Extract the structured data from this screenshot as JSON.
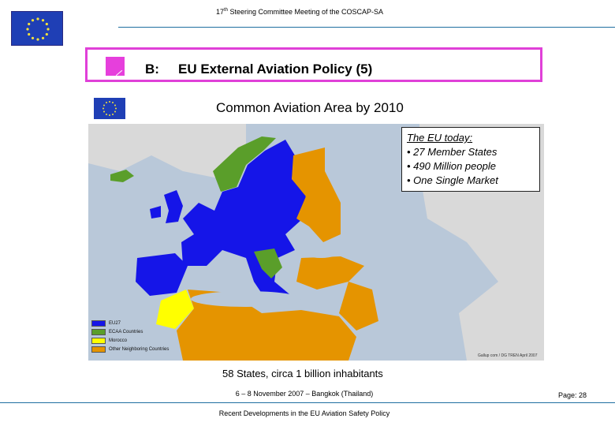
{
  "header": {
    "meeting_number": "17",
    "meeting_suffix": "th",
    "meeting_text": " Steering Committee Meeting of the COSCAP-SA"
  },
  "title": {
    "label": "B:",
    "text": "EU External Aviation Policy (5)"
  },
  "map": {
    "title": "Common Aviation Area by 2010",
    "info_box": {
      "heading": "The EU today:",
      "items": [
        "• 27 Member States",
        "• 490 Million people",
        "• One Single Market"
      ]
    },
    "legend": [
      {
        "label": "EU27",
        "color": "#1515e8"
      },
      {
        "label": "ECAA Countries",
        "color": "#5a9e2a"
      },
      {
        "label": "Morocco",
        "color": "#ffff00"
      },
      {
        "label": "Other Neighboring Countries",
        "color": "#e59400"
      }
    ],
    "copyright": "Gallup com / DG TREN April 2007"
  },
  "caption": "58 States, circa 1 billion inhabitants",
  "footer": {
    "date": "6 – 8 November 2007 – Bangkok (Thailand)",
    "page": "Page: 28",
    "title": "Recent Developments in the EU Aviation Safety Policy"
  },
  "colors": {
    "accent_border": "#e040d8",
    "sea": "#b9c8d9",
    "land_other": "#d9d9d9"
  }
}
